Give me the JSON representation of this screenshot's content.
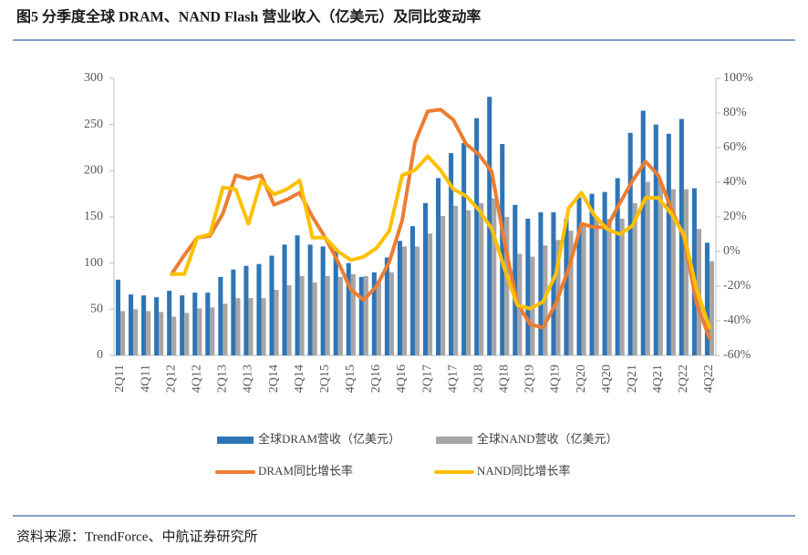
{
  "chart_data": {
    "type": "bar",
    "title": "图5 分季度全球 DRAM、NAND Flash 营业收入（亿美元）及同比变动率",
    "source": "资料来源：TrendForce、中航证券研究所",
    "categories": [
      "2Q11",
      null,
      "4Q11",
      null,
      "2Q12",
      null,
      "4Q12",
      null,
      "2Q13",
      null,
      "4Q13",
      null,
      "2Q14",
      null,
      "4Q14",
      null,
      "2Q15",
      null,
      "4Q15",
      null,
      "2Q16",
      null,
      "4Q16",
      null,
      "2Q17",
      null,
      "4Q17",
      null,
      "2Q18",
      null,
      "4Q18",
      null,
      "2Q19",
      null,
      "4Q19",
      null,
      "2Q20",
      null,
      "4Q20",
      null,
      "2Q21",
      null,
      "4Q21",
      null,
      "2Q22",
      null,
      "4Q22"
    ],
    "ylim": [
      0,
      300
    ],
    "yticks": [
      0,
      50,
      100,
      150,
      200,
      250,
      300
    ],
    "y2lim": [
      -60,
      100
    ],
    "y2ticks": [
      {
        "value": -60,
        "label": "-60%"
      },
      {
        "value": -40,
        "label": "-40%"
      },
      {
        "value": -20,
        "label": "-20%"
      },
      {
        "value": 0,
        "label": "0%"
      },
      {
        "value": 20,
        "label": "20%"
      },
      {
        "value": 40,
        "label": "40%"
      },
      {
        "value": 60,
        "label": "60%"
      },
      {
        "value": 80,
        "label": "80%"
      },
      {
        "value": 100,
        "label": "100%"
      }
    ],
    "series": [
      {
        "name": "全球DRAM营收（亿美元）",
        "type": "bar",
        "color": "#2e75b6",
        "values": [
          82,
          66,
          65,
          63,
          70,
          65,
          68,
          68,
          85,
          93,
          97,
          99,
          108,
          120,
          130,
          120,
          118,
          113,
          100,
          85,
          90,
          106,
          124,
          140,
          165,
          192,
          219,
          230,
          257,
          280,
          229,
          163,
          148,
          155,
          155,
          148,
          171,
          175,
          177,
          192,
          241,
          265,
          250,
          240,
          256,
          181,
          122
        ]
      },
      {
        "name": "全球NAND营收（亿美元）",
        "type": "bar",
        "color": "#a6a6a6",
        "values": [
          48,
          50,
          48,
          47,
          42,
          46,
          51,
          52,
          56,
          62,
          62,
          62,
          71,
          76,
          86,
          79,
          86,
          85,
          88,
          86,
          81,
          90,
          118,
          118,
          132,
          151,
          162,
          157,
          165,
          170,
          150,
          110,
          107,
          119,
          125,
          135,
          143,
          150,
          148,
          148,
          165,
          188,
          188,
          180,
          180,
          137,
          102
        ]
      },
      {
        "name": "DRAM同比增长率",
        "type": "line",
        "axis": "y2",
        "color": "#ed7d31",
        "values": [
          null,
          null,
          null,
          null,
          -13,
          -2,
          8,
          9,
          22,
          44,
          42,
          44,
          27,
          30,
          34,
          20,
          8,
          -6,
          -22,
          -28,
          -20,
          -6,
          18,
          63,
          81,
          82,
          76,
          62,
          56,
          46,
          5,
          -30,
          -42,
          -44,
          -30,
          -10,
          16,
          14,
          14,
          28,
          41,
          52,
          44,
          25,
          8,
          -30,
          -50
        ]
      },
      {
        "name": "NAND同比增长率",
        "type": "line",
        "axis": "y2",
        "color": "#ffc000",
        "values": [
          null,
          null,
          null,
          null,
          -13,
          -13,
          8,
          10,
          37,
          36,
          16,
          41,
          33,
          36,
          41,
          8,
          8,
          0,
          -5,
          -3,
          2,
          12,
          44,
          47,
          55,
          47,
          36,
          32,
          24,
          13,
          -10,
          -31,
          -33,
          -29,
          -13,
          25,
          34,
          21,
          13,
          10,
          15,
          31,
          31,
          22,
          10,
          -22,
          -44
        ]
      }
    ]
  }
}
